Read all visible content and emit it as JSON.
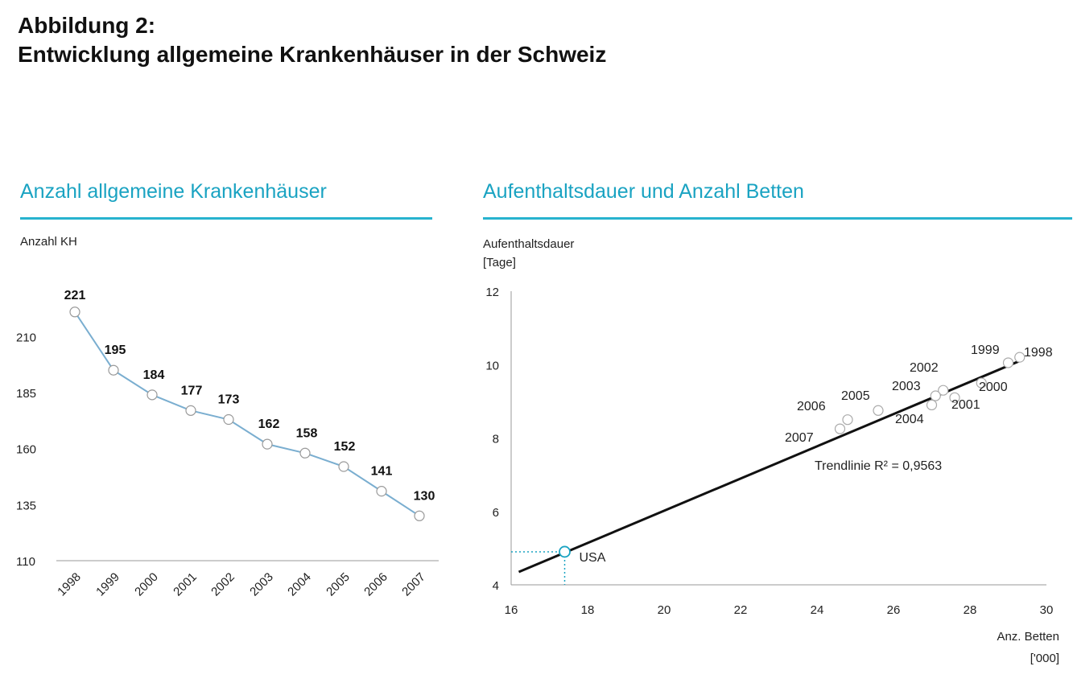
{
  "figure": {
    "title_line1": "Abbildung 2:",
    "title_line2": "Entwicklung allgemeine Krankenhäuser in der Schweiz"
  },
  "colors": {
    "accent": "#1aa3c2",
    "line": "#7aaed0",
    "trend": "#111111"
  },
  "chart_data": [
    {
      "type": "line",
      "title": "Anzahl allgemeine Krankenhäuser",
      "ylabel": "Anzahl KH",
      "xlabel": "",
      "categories": [
        "1998",
        "1999",
        "2000",
        "2001",
        "2002",
        "2003",
        "2004",
        "2005",
        "2006",
        "2007"
      ],
      "series": [
        {
          "values": [
            221,
            195,
            184,
            177,
            173,
            162,
            158,
            152,
            141,
            130
          ]
        }
      ],
      "data_labels": [
        "221",
        "195",
        "184",
        "177",
        "173",
        "162",
        "158",
        "152",
        "141",
        "130"
      ],
      "ylim": [
        110,
        222
      ],
      "yticks": [
        110,
        135,
        160,
        185,
        210
      ],
      "grid": false
    },
    {
      "type": "scatter",
      "title": "Aufenthaltsdauer und Anzahl Betten",
      "ylabel_line1": "Aufenthaltsdauer",
      "ylabel_line2": "[Tage]",
      "xlabel_line1": "Anz. Betten",
      "xlabel_line2": "['000]",
      "xlim": [
        16,
        30
      ],
      "ylim": [
        4,
        12
      ],
      "xticks": [
        16,
        18,
        20,
        22,
        24,
        26,
        28,
        30
      ],
      "yticks": [
        4,
        6,
        8,
        10,
        12
      ],
      "points": [
        {
          "label": "1998",
          "x": 29.3,
          "y": 10.2
        },
        {
          "label": "1999",
          "x": 29.0,
          "y": 10.05
        },
        {
          "label": "2000",
          "x": 28.3,
          "y": 9.5
        },
        {
          "label": "2001",
          "x": 27.6,
          "y": 9.1
        },
        {
          "label": "2002",
          "x": 27.3,
          "y": 9.3
        },
        {
          "label": "2003",
          "x": 27.1,
          "y": 9.15
        },
        {
          "label": "2004",
          "x": 27.0,
          "y": 8.9
        },
        {
          "label": "2005",
          "x": 25.6,
          "y": 8.75
        },
        {
          "label": "2006",
          "x": 24.8,
          "y": 8.5
        },
        {
          "label": "2007",
          "x": 24.6,
          "y": 8.25
        }
      ],
      "highlight": {
        "label": "USA",
        "x": 17.4,
        "y": 4.9
      },
      "trendline": {
        "label": "Trendlinie R² = 0,9563",
        "x": [
          16.2,
          29.3
        ],
        "y": [
          4.35,
          10.1
        ]
      },
      "grid": false
    }
  ]
}
